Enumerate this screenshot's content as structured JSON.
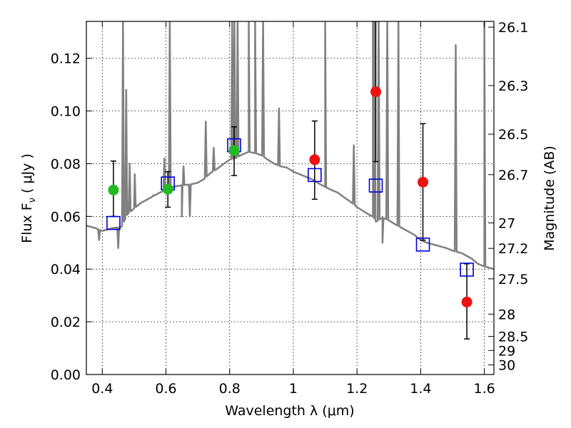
{
  "chart_data": {
    "type": "scatter",
    "xlabel": "Wavelength  λ (μm)",
    "ylabel": "Flux  F",
    "ylabel_sub": "ν",
    "ylabel_unit": "  ( μJy )",
    "y2label": "Magnitude (AB)",
    "xlim": [
      0.35,
      1.63
    ],
    "ylim": [
      0.0,
      0.134
    ],
    "grid": true,
    "xticks": [
      {
        "value": 0.4,
        "label": "0.4"
      },
      {
        "value": 0.6,
        "label": "0.6"
      },
      {
        "value": 0.8,
        "label": "0.8"
      },
      {
        "value": 1.0,
        "label": "1"
      },
      {
        "value": 1.2,
        "label": "1.2"
      },
      {
        "value": 1.4,
        "label": "1.4"
      },
      {
        "value": 1.6,
        "label": "1.6"
      }
    ],
    "yticks": [
      {
        "value": 0.0,
        "label": "0.00"
      },
      {
        "value": 0.02,
        "label": "0.02"
      },
      {
        "value": 0.04,
        "label": "0.04"
      },
      {
        "value": 0.06,
        "label": "0.06"
      },
      {
        "value": 0.08,
        "label": "0.08"
      },
      {
        "value": 0.1,
        "label": "0.10"
      },
      {
        "value": 0.12,
        "label": "0.12"
      }
    ],
    "y2ticks": [
      {
        "value": 26.1,
        "label": "26.1"
      },
      {
        "value": 26.3,
        "label": "26.3"
      },
      {
        "value": 26.5,
        "label": "26.5"
      },
      {
        "value": 26.7,
        "label": "26.7"
      },
      {
        "value": 27.0,
        "label": "27"
      },
      {
        "value": 27.2,
        "label": "27.2"
      },
      {
        "value": 27.5,
        "label": "27.5"
      },
      {
        "value": 28.0,
        "label": "28"
      },
      {
        "value": 28.5,
        "label": "28.5"
      },
      {
        "value": 29.0,
        "label": "29"
      },
      {
        "value": 30.0,
        "label": "30"
      }
    ],
    "series": [
      {
        "kind": "model_spectrum",
        "color": "#808080",
        "continuum": [
          [
            0.35,
            0.0565
          ],
          [
            0.38,
            0.0555
          ],
          [
            0.4,
            0.0545
          ],
          [
            0.43,
            0.0555
          ],
          [
            0.46,
            0.056
          ],
          [
            0.48,
            0.061
          ],
          [
            0.5,
            0.063
          ],
          [
            0.52,
            0.065
          ],
          [
            0.55,
            0.067
          ],
          [
            0.58,
            0.069
          ],
          [
            0.6,
            0.07
          ],
          [
            0.62,
            0.0712
          ],
          [
            0.65,
            0.0718
          ],
          [
            0.68,
            0.0722
          ],
          [
            0.7,
            0.0728
          ],
          [
            0.72,
            0.0742
          ],
          [
            0.74,
            0.0765
          ],
          [
            0.76,
            0.078
          ],
          [
            0.78,
            0.0798
          ],
          [
            0.8,
            0.0815
          ],
          [
            0.82,
            0.0822
          ],
          [
            0.84,
            0.0835
          ],
          [
            0.86,
            0.0845
          ],
          [
            0.88,
            0.084
          ],
          [
            0.9,
            0.0832
          ],
          [
            0.92,
            0.0815
          ],
          [
            0.94,
            0.08
          ],
          [
            0.96,
            0.079
          ],
          [
            0.98,
            0.0785
          ],
          [
            1.0,
            0.077
          ],
          [
            1.02,
            0.076
          ],
          [
            1.04,
            0.075
          ],
          [
            1.06,
            0.074
          ],
          [
            1.08,
            0.0725
          ],
          [
            1.1,
            0.0712
          ],
          [
            1.12,
            0.07
          ],
          [
            1.14,
            0.069
          ],
          [
            1.16,
            0.0672
          ],
          [
            1.18,
            0.0655
          ],
          [
            1.2,
            0.0635
          ],
          [
            1.22,
            0.062
          ],
          [
            1.24,
            0.0605
          ],
          [
            1.25,
            0.06
          ],
          [
            1.26,
            0.058
          ],
          [
            1.28,
            0.0595
          ],
          [
            1.3,
            0.0585
          ],
          [
            1.32,
            0.057
          ],
          [
            1.35,
            0.055
          ],
          [
            1.38,
            0.053
          ],
          [
            1.4,
            0.051
          ],
          [
            1.42,
            0.05
          ],
          [
            1.45,
            0.049
          ],
          [
            1.48,
            0.048
          ],
          [
            1.5,
            0.047
          ],
          [
            1.53,
            0.046
          ],
          [
            1.56,
            0.044
          ],
          [
            1.58,
            0.042
          ],
          [
            1.6,
            0.041
          ],
          [
            1.63,
            0.04
          ]
        ],
        "emission_lines": [
          [
            0.465,
            0.134
          ],
          [
            0.475,
            0.108
          ],
          [
            0.486,
            0.08
          ],
          [
            0.502,
            0.076
          ],
          [
            0.56,
            0.068
          ],
          [
            0.595,
            0.082
          ],
          [
            0.612,
            0.134
          ],
          [
            0.655,
            0.079
          ],
          [
            0.725,
            0.096
          ],
          [
            0.75,
            0.086
          ],
          [
            0.808,
            0.134
          ],
          [
            0.815,
            0.134
          ],
          [
            0.825,
            0.134
          ],
          [
            0.86,
            0.134
          ],
          [
            0.88,
            0.134
          ],
          [
            0.905,
            0.134
          ],
          [
            0.955,
            0.101
          ],
          [
            1.1,
            0.134
          ],
          [
            1.19,
            0.087
          ],
          [
            1.25,
            0.134
          ],
          [
            1.255,
            0.134
          ],
          [
            1.268,
            0.134
          ],
          [
            1.295,
            0.134
          ],
          [
            1.33,
            0.134
          ],
          [
            1.51,
            0.125
          ],
          [
            1.6,
            0.134
          ]
        ],
        "absorption_dips": [
          [
            0.39,
            0.051
          ],
          [
            0.45,
            0.048
          ],
          [
            0.65,
            0.06
          ],
          [
            0.675,
            0.06
          ],
          [
            1.28,
            0.05
          ]
        ]
      },
      {
        "kind": "observed_green",
        "color": "#22bb22",
        "points": [
          {
            "x": 0.435,
            "y": 0.07,
            "err_lo": 0.06,
            "err_hi": 0.081
          },
          {
            "x": 0.606,
            "y": 0.0703,
            "err_lo": 0.0635,
            "err_hi": 0.077
          },
          {
            "x": 0.814,
            "y": 0.085,
            "err_lo": 0.0755,
            "err_hi": 0.094
          }
        ]
      },
      {
        "kind": "observed_red",
        "color": "#ee1111",
        "points": [
          {
            "x": 1.067,
            "y": 0.0815,
            "err_lo": 0.0665,
            "err_hi": 0.0962
          },
          {
            "x": 1.259,
            "y": 0.1073,
            "err_lo": 0.0808,
            "err_hi": 0.134
          },
          {
            "x": 1.407,
            "y": 0.073,
            "err_lo": 0.051,
            "err_hi": 0.0952
          },
          {
            "x": 1.545,
            "y": 0.0275,
            "err_lo": 0.0135,
            "err_hi": 0.042
          }
        ]
      },
      {
        "kind": "model_photometry",
        "color": "#0000dd",
        "points": [
          {
            "x": 0.435,
            "y": 0.0575
          },
          {
            "x": 0.606,
            "y": 0.0725
          },
          {
            "x": 0.814,
            "y": 0.087
          },
          {
            "x": 1.067,
            "y": 0.0757
          },
          {
            "x": 1.259,
            "y": 0.0717
          },
          {
            "x": 1.407,
            "y": 0.0493
          },
          {
            "x": 1.545,
            "y": 0.0398
          }
        ]
      }
    ]
  }
}
